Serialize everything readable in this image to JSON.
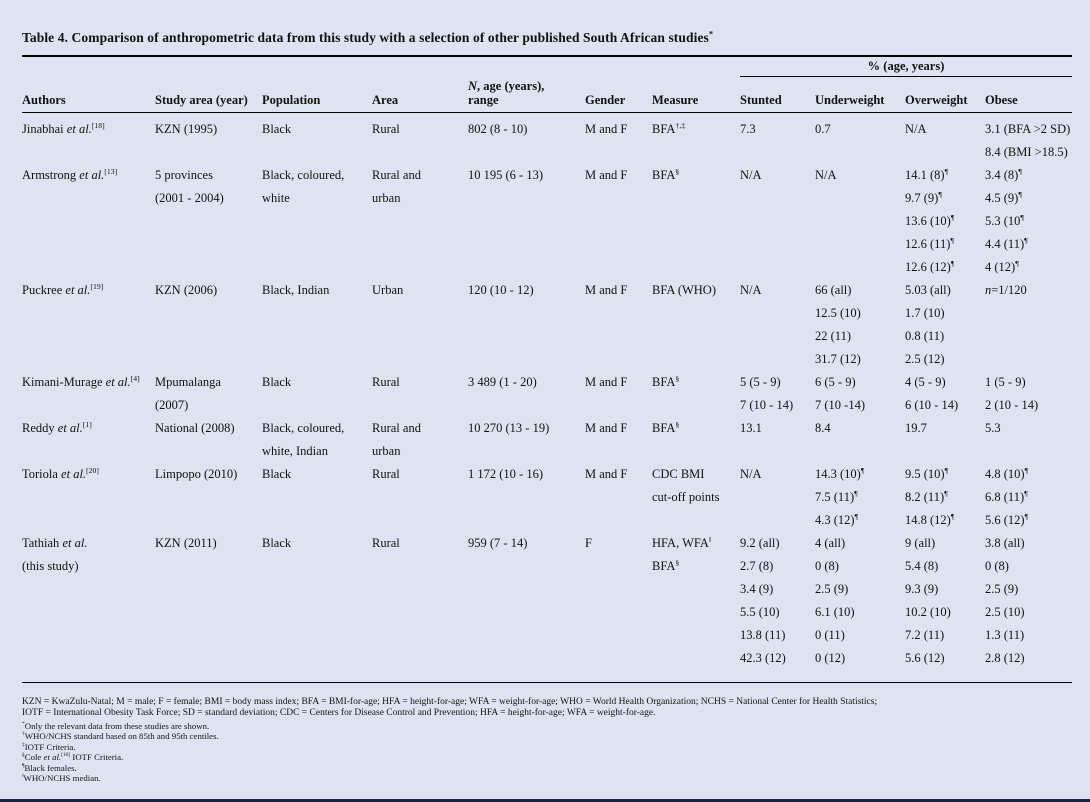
{
  "page": {
    "title": "Table 4. Comparison of anthropometric data from this study with a selection of other published South African studies^{*}",
    "background_color": "#dde3f0",
    "rule_color": "#000000",
    "bottom_bar_color": "#182440"
  },
  "table": {
    "span_header": "% (age, years)",
    "columns": [
      {
        "key": "authors",
        "label": "Authors"
      },
      {
        "key": "study_area",
        "label": "Study area (year)"
      },
      {
        "key": "population",
        "label": "Population"
      },
      {
        "key": "area",
        "label": "Area"
      },
      {
        "key": "n_range",
        "label": "_N_, age (years),\nrange"
      },
      {
        "key": "gender",
        "label": "Gender"
      },
      {
        "key": "measure",
        "label": "Measure"
      },
      {
        "key": "stunted",
        "label": "Stunted"
      },
      {
        "key": "underweight",
        "label": "Underweight"
      },
      {
        "key": "overweight",
        "label": "Overweight"
      },
      {
        "key": "obese",
        "label": "Obese"
      }
    ],
    "rows": [
      {
        "authors": [
          "Jinabhai _et al._^{[18]}"
        ],
        "study_area": [
          "KZN (1995)"
        ],
        "population": [
          "Black"
        ],
        "area": [
          "Rural"
        ],
        "n_range": [
          "802 (8 - 10)"
        ],
        "gender": [
          "M and F"
        ],
        "measure": [
          "BFA^{†,‡}"
        ],
        "stunted": [
          "7.3"
        ],
        "underweight": [
          "0.7"
        ],
        "overweight": [
          "N/A"
        ],
        "obese": [
          "3.1 (BFA >2 SD)",
          "8.4 (BMI >18.5)"
        ]
      },
      {
        "authors": [
          "Armstrong _et al._^{[13]}"
        ],
        "study_area": [
          "5 provinces",
          "(2001 - 2004)"
        ],
        "population": [
          "Black, coloured,",
          "white"
        ],
        "area": [
          "Rural and",
          "urban"
        ],
        "n_range": [
          "10 195 (6 - 13)"
        ],
        "gender": [
          "M and F"
        ],
        "measure": [
          "BFA^{§}"
        ],
        "stunted": [
          "N/A"
        ],
        "underweight": [
          "N/A"
        ],
        "overweight": [
          "14.1 (8)^{¶}",
          "9.7 (9)^{¶}",
          "13.6 (10)^{¶}",
          "12.6 (11)^{¶}",
          "12.6 (12)^{¶}"
        ],
        "obese": [
          "3.4 (8)^{¶}",
          "4.5 (9)^{¶}",
          "5.3 (10^{¶}",
          "4.4 (11)^{¶}",
          "4 (12)^{¶}"
        ]
      },
      {
        "authors": [
          "Puckree _et al._^{[19]}"
        ],
        "study_area": [
          "KZN (2006)"
        ],
        "population": [
          "Black, Indian"
        ],
        "area": [
          "Urban"
        ],
        "n_range": [
          "120 (10 - 12)"
        ],
        "gender": [
          "M and F"
        ],
        "measure": [
          "BFA (WHO)"
        ],
        "stunted": [
          "N/A"
        ],
        "underweight": [
          "66 (all)",
          "12.5 (10)",
          "22 (11)",
          "31.7 (12)"
        ],
        "overweight": [
          "5.03 (all)",
          "1.7 (10)",
          "0.8 (11)",
          "2.5 (12)"
        ],
        "obese": [
          "_n_=1/120"
        ]
      },
      {
        "authors": [
          "Kimani-Murage _et al._^{[4]}"
        ],
        "study_area": [
          "Mpumalanga",
          "(2007)"
        ],
        "population": [
          "Black"
        ],
        "area": [
          "Rural"
        ],
        "n_range": [
          "3 489 (1 - 20)"
        ],
        "gender": [
          "M and F"
        ],
        "measure": [
          "BFA^{§}"
        ],
        "stunted": [
          "5 (5 - 9)",
          "7 (10 - 14)"
        ],
        "underweight": [
          "6 (5 - 9)",
          "7 (10 -14)"
        ],
        "overweight": [
          "4 (5 - 9)",
          "6 (10 - 14)"
        ],
        "obese": [
          "1 (5 - 9)",
          "2 (10 - 14)"
        ]
      },
      {
        "authors": [
          "Reddy _et al._^{[1]}"
        ],
        "study_area": [
          "National (2008)"
        ],
        "population": [
          "Black, coloured,",
          "white, Indian"
        ],
        "area": [
          "Rural and",
          "urban"
        ],
        "n_range": [
          "10 270 (13 - 19)"
        ],
        "gender": [
          "M and F"
        ],
        "measure": [
          "BFA^{§}"
        ],
        "stunted": [
          "13.1"
        ],
        "underweight": [
          "8.4"
        ],
        "overweight": [
          "19.7"
        ],
        "obese": [
          "5.3"
        ]
      },
      {
        "authors": [
          "Toriola _et al._^{[20]}"
        ],
        "study_area": [
          "Limpopo (2010)"
        ],
        "population": [
          "Black"
        ],
        "area": [
          "Rural"
        ],
        "n_range": [
          "1 172 (10 - 16)"
        ],
        "gender": [
          "M and F"
        ],
        "measure": [
          "CDC BMI",
          "cut-off points"
        ],
        "stunted": [
          "N/A"
        ],
        "underweight": [
          "14.3 (10)^{¶}",
          "7.5 (11)^{¶}",
          "4.3 (12)^{¶}"
        ],
        "overweight": [
          "9.5 (10)^{¶}",
          "8.2 (11)^{¶}",
          "14.8 (12)^{¶}"
        ],
        "obese": [
          "4.8 (10)^{¶}",
          "6.8 (11)^{¶}",
          "5.6 (12)^{¶}"
        ]
      },
      {
        "authors": [
          "Tathiah _et al._",
          "(this study)"
        ],
        "study_area": [
          "KZN (2011)"
        ],
        "population": [
          "Black"
        ],
        "area": [
          "Rural"
        ],
        "n_range": [
          "959 (7 - 14)"
        ],
        "gender": [
          "F"
        ],
        "measure": [
          "HFA, WFA^{‖}",
          "BFA^{§}"
        ],
        "stunted": [
          "9.2 (all)",
          "2.7 (8)",
          "3.4 (9)",
          "5.5 (10)",
          "13.8 (11)",
          "42.3 (12)"
        ],
        "underweight": [
          "4 (all)",
          "0 (8)",
          "2.5 (9)",
          "6.1 (10)",
          "0 (11)",
          "0 (12)"
        ],
        "overweight": [
          "9 (all)",
          "5.4 (8)",
          "9.3 (9)",
          "10.2 (10)",
          "7.2 (11)",
          "5.6 (12)"
        ],
        "obese": [
          "3.8 (all)",
          "0 (8)",
          "2.5 (9)",
          "2.5 (10)",
          "1.3 (11)",
          "2.8 (12)"
        ]
      }
    ]
  },
  "footnotes": {
    "abbreviations": [
      "KZN = KwaZulu-Natal; M = male; F = female; BMI = body mass index; BFA = BMI-for-age; HFA = height-for-age; WFA = weight-for-age; WHO = World Health Organization; NCHS = National Center for Health Statistics;",
      "IOTF = International Obesity Task Force; SD = standard deviation; CDC = Centers for Disease Control and Prevention; HFA = height-for-age; WFA = weight-for-age."
    ],
    "notes": [
      "^{*}Only the relevant data from these studies are shown.",
      "^{†}WHO/NCHS standard based on 85th and 95th centiles.",
      "^{‡}IOTF Criteria.",
      "^{§}Cole _et al._^{[16]} IOTF Criteria.",
      "^{¶}Black females.",
      "^{‖}WHO/NCHS median."
    ]
  }
}
